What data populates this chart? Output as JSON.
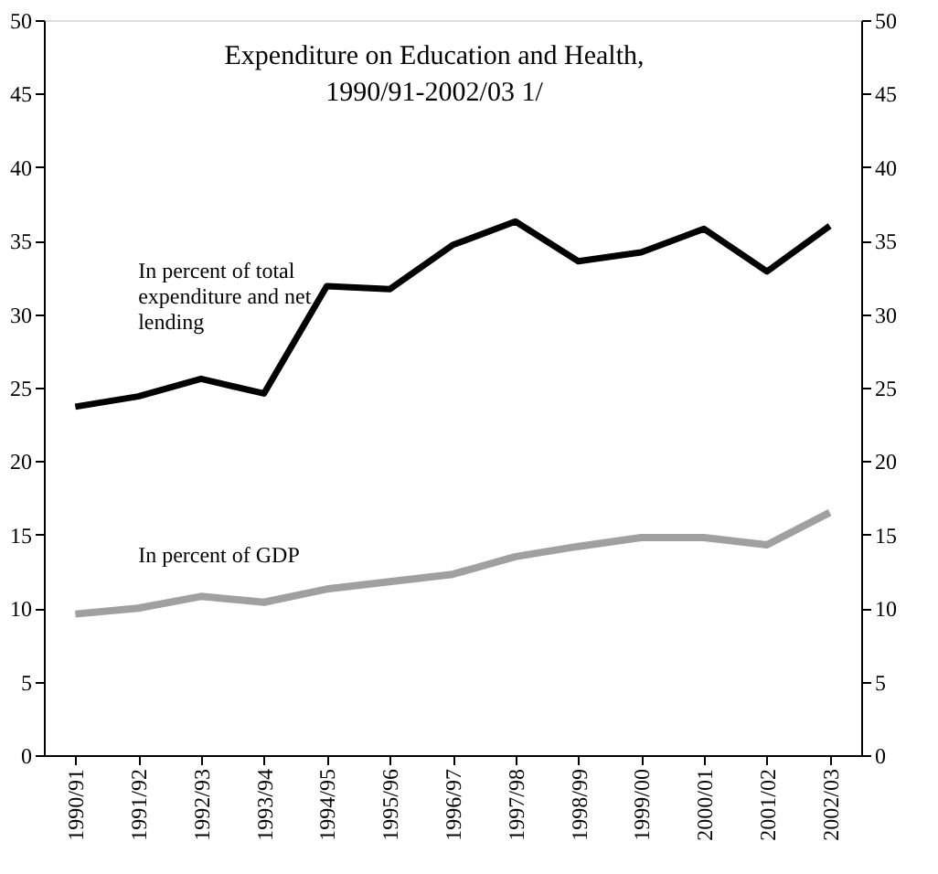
{
  "chart_data": {
    "type": "line",
    "title": "Expenditure on Education and Health,\n1990/91-2002/03 1/",
    "categories": [
      "1990/91",
      "1991/92",
      "1992/93",
      "1993/94",
      "1994/95",
      "1995/96",
      "1996/97",
      "1997/98",
      "1998/99",
      "1999/00",
      "2000/01",
      "2001/02",
      "2002/03"
    ],
    "series": [
      {
        "name": "In percent of total\nexpenditure and net\nlending",
        "color": "#000000",
        "values": [
          23.7,
          24.4,
          25.6,
          24.6,
          31.9,
          31.7,
          34.7,
          36.3,
          33.6,
          34.2,
          35.8,
          32.9,
          36.0
        ]
      },
      {
        "name": "In percent of GDP",
        "color": "#a0a0a0",
        "values": [
          9.6,
          10.0,
          10.8,
          10.4,
          11.3,
          11.8,
          12.3,
          13.5,
          14.2,
          14.8,
          14.8,
          14.3,
          16.5
        ]
      }
    ],
    "ylim": [
      0,
      50
    ],
    "yticks": [
      0,
      5,
      10,
      15,
      20,
      25,
      30,
      35,
      40,
      45,
      50
    ],
    "y2lim": [
      0,
      50
    ],
    "y2ticks": [
      0,
      5,
      10,
      15,
      20,
      25,
      30,
      35,
      40,
      45,
      50
    ],
    "grid": false,
    "marker": "none",
    "line_style": "solid"
  }
}
